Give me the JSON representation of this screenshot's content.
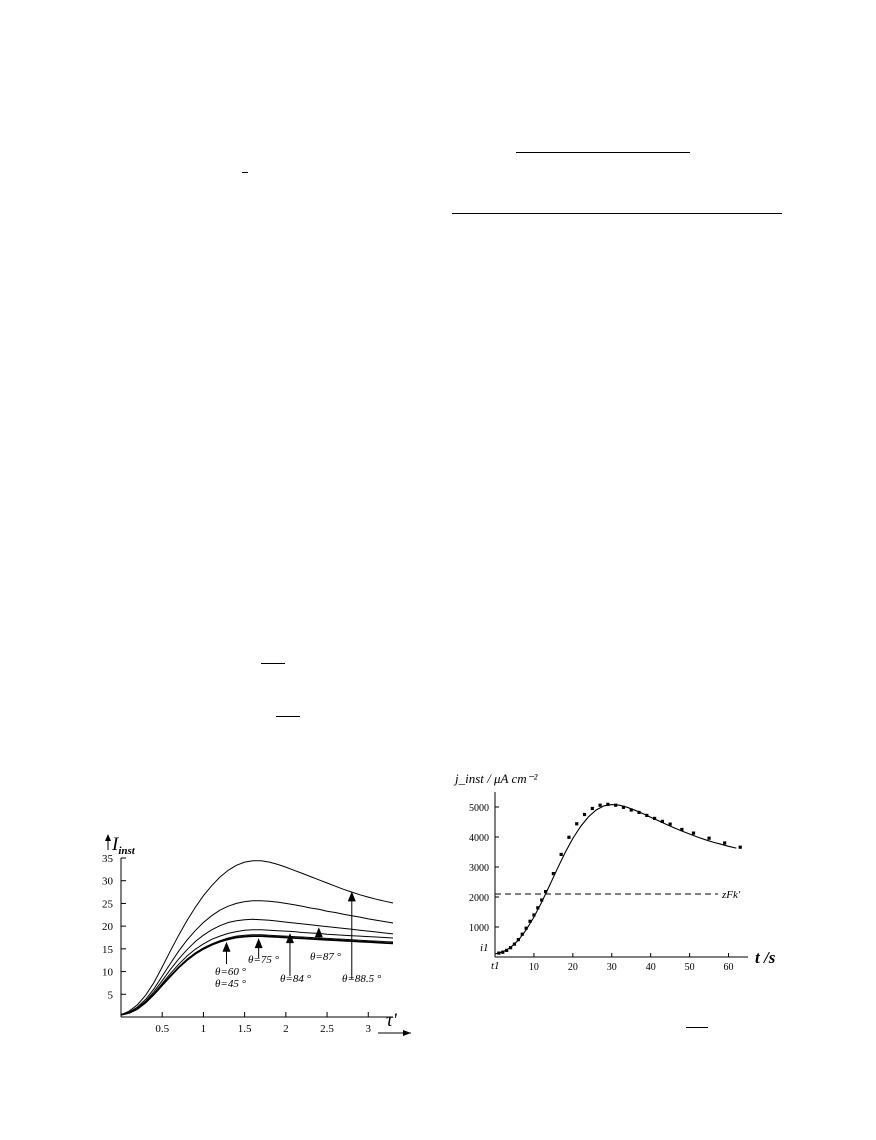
{
  "chart_data": [
    {
      "type": "line",
      "title": "",
      "ylabel_main": "I",
      "ylabel_sub": "inst",
      "xlabel": "τ'",
      "xlim": [
        0,
        3.3
      ],
      "ylim": [
        0,
        35
      ],
      "xticks": [
        0.5,
        1,
        1.5,
        2,
        2.5,
        3
      ],
      "xtick_labels": [
        "0.5",
        "1",
        "1.5",
        "2",
        "2.5",
        "3"
      ],
      "yticks": [
        5,
        10,
        15,
        20,
        25,
        30,
        35
      ],
      "ytick_labels": [
        "5",
        "10",
        "15",
        "20",
        "25",
        "30",
        "35"
      ],
      "x": [
        0,
        0.1,
        0.2,
        0.3,
        0.4,
        0.5,
        0.6,
        0.7,
        0.8,
        0.9,
        1.0,
        1.1,
        1.2,
        1.3,
        1.4,
        1.5,
        1.6,
        1.7,
        1.8,
        1.9,
        2.0,
        2.1,
        2.2,
        2.3,
        2.4,
        2.5,
        2.6,
        2.7,
        2.8,
        2.9,
        3.0,
        3.1,
        3.2,
        3.3
      ],
      "series": [
        {
          "values": [
            0.5,
            0.9,
            1.8,
            3.2,
            5.0,
            7.0,
            9.0,
            10.9,
            12.5,
            13.9,
            15.0,
            15.9,
            16.6,
            17.1,
            17.5,
            17.7,
            17.8,
            17.8,
            17.7,
            17.6,
            17.5,
            17.4,
            17.3,
            17.2,
            17.1,
            17.0,
            16.9,
            16.8,
            16.7,
            16.6,
            16.5,
            16.4,
            16.3,
            16.2
          ]
        },
        {
          "values": [
            0.5,
            0.9,
            1.8,
            3.2,
            5.0,
            7.1,
            9.1,
            11.0,
            12.7,
            14.1,
            15.2,
            16.1,
            16.8,
            17.4,
            17.8,
            18.0,
            18.1,
            18.1,
            18.0,
            17.9,
            17.8,
            17.7,
            17.6,
            17.5,
            17.4,
            17.3,
            17.2,
            17.1,
            17.0,
            16.9,
            16.8,
            16.7,
            16.6,
            16.5
          ]
        },
        {
          "values": [
            0.5,
            0.9,
            1.9,
            3.3,
            5.2,
            7.4,
            9.6,
            11.6,
            13.4,
            14.9,
            16.1,
            17.1,
            17.8,
            18.4,
            18.8,
            19.1,
            19.2,
            19.2,
            19.1,
            19.0,
            18.9,
            18.8,
            18.6,
            18.5,
            18.4,
            18.2,
            18.1,
            18.0,
            17.9,
            17.8,
            17.7,
            17.6,
            17.5,
            17.4
          ]
        },
        {
          "values": [
            0.5,
            1.0,
            2.0,
            3.5,
            5.6,
            8.0,
            10.5,
            12.8,
            14.8,
            16.6,
            18.0,
            19.2,
            20.1,
            20.8,
            21.2,
            21.4,
            21.5,
            21.4,
            21.3,
            21.1,
            20.9,
            20.7,
            20.5,
            20.3,
            20.1,
            19.9,
            19.7,
            19.5,
            19.3,
            19.1,
            18.9,
            18.7,
            18.5,
            18.3
          ]
        },
        {
          "values": [
            0.5,
            1.1,
            2.2,
            3.9,
            6.2,
            9.0,
            11.8,
            14.5,
            16.9,
            19.0,
            20.8,
            22.3,
            23.5,
            24.4,
            25.0,
            25.4,
            25.6,
            25.6,
            25.5,
            25.3,
            25.0,
            24.7,
            24.4,
            24.0,
            23.7,
            23.3,
            23.0,
            22.6,
            22.3,
            22.0,
            21.6,
            21.3,
            21.0,
            20.7
          ]
        },
        {
          "values": [
            0.5,
            1.3,
            2.7,
            4.8,
            7.6,
            11.0,
            14.6,
            18.0,
            21.2,
            24.1,
            26.7,
            28.9,
            30.8,
            32.3,
            33.4,
            34.1,
            34.4,
            34.4,
            34.1,
            33.6,
            33.0,
            32.3,
            31.6,
            30.9,
            30.2,
            29.5,
            28.8,
            28.1,
            27.5,
            26.9,
            26.4,
            25.9,
            25.5,
            25.1
          ]
        }
      ],
      "annotations": [
        {
          "text": "θ=60 °",
          "x": 1.28,
          "y": 17.0
        },
        {
          "text": "θ=45 °",
          "x": 1.28,
          "y": 17.0
        },
        {
          "text": "θ=75 °",
          "x": 1.67,
          "y": 17.8
        },
        {
          "text": "θ=84 °",
          "x": 2.05,
          "y": 18.9
        },
        {
          "text": "θ=87 °",
          "x": 2.4,
          "y": 20.2
        },
        {
          "text": "θ=88.5 °",
          "x": 2.8,
          "y": 28.1
        }
      ]
    },
    {
      "type": "line",
      "title": "",
      "ylabel": "j_inst / μA cm⁻²",
      "xlabel": "t /s",
      "xlim": [
        0,
        65
      ],
      "ylim": [
        0,
        5500
      ],
      "xticks": [
        10,
        20,
        30,
        40,
        50,
        60
      ],
      "xtick_labels": [
        "10",
        "20",
        "30",
        "40",
        "50",
        "60"
      ],
      "yticks": [
        1000,
        2000,
        3000,
        4000,
        5000
      ],
      "ytick_labels": [
        "1000",
        "2000",
        "3000",
        "4000",
        "5000"
      ],
      "x_marker": "t1",
      "y_marker": "i1",
      "reference_line": {
        "label": "zFk'",
        "y": 2100
      },
      "fit_curve": {
        "x": [
          0,
          2,
          4,
          6,
          8,
          10,
          12,
          14,
          16,
          18,
          20,
          22,
          24,
          26,
          28,
          30,
          32,
          34,
          36,
          38,
          40,
          42,
          44,
          46,
          48,
          50,
          52,
          54,
          56,
          58,
          60,
          62
        ],
        "y": [
          100,
          170,
          320,
          560,
          900,
          1330,
          1830,
          2380,
          2940,
          3480,
          3950,
          4350,
          4670,
          4900,
          5040,
          5080,
          5060,
          4990,
          4890,
          4780,
          4660,
          4540,
          4420,
          4310,
          4200,
          4100,
          4000,
          3910,
          3830,
          3760,
          3690,
          3630
        ]
      },
      "points": {
        "x": [
          1,
          2,
          3,
          4,
          5,
          6,
          7,
          8,
          9,
          10,
          11,
          12,
          13,
          15,
          17,
          19,
          21,
          23,
          25,
          27,
          29,
          31,
          33,
          35,
          37,
          39,
          41,
          43,
          45,
          48,
          51,
          55,
          59,
          63
        ],
        "y": [
          130,
          160,
          220,
          310,
          430,
          580,
          760,
          960,
          1190,
          1400,
          1640,
          1900,
          2180,
          2780,
          3420,
          3990,
          4440,
          4750,
          4950,
          5060,
          5090,
          5060,
          4990,
          4900,
          4820,
          4720,
          4620,
          4520,
          4430,
          4250,
          4130,
          3960,
          3800,
          3660
        ]
      }
    }
  ]
}
